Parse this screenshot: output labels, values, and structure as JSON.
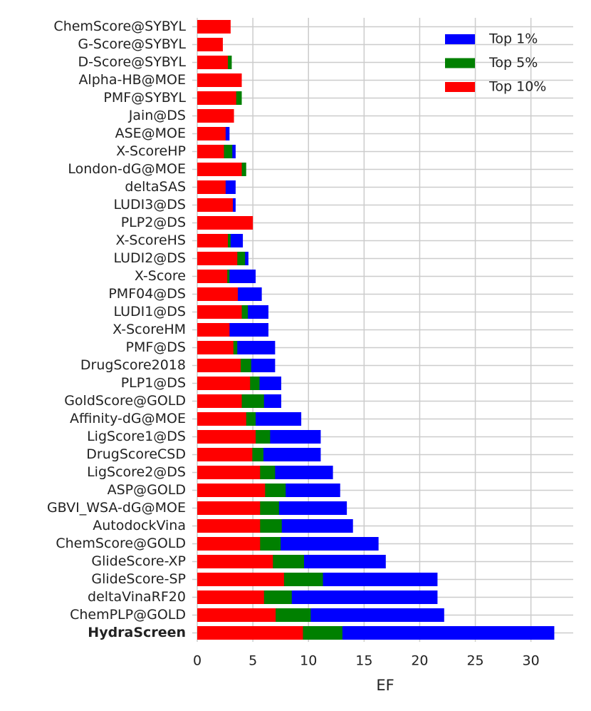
{
  "chart_data": {
    "type": "bar",
    "orientation": "horizontal",
    "overlay": true,
    "x_label": "EF",
    "categories": [
      "ChemScore@SYBYL",
      "G-Score@SYBYL",
      "D-Score@SYBYL",
      "Alpha-HB@MOE",
      "PMF@SYBYL",
      "Jain@DS",
      "ASE@MOE",
      "X-ScoreHP",
      "London-dG@MOE",
      "deltaSAS",
      "LUDI3@DS",
      "PLP2@DS",
      "X-ScoreHS",
      "LUDI2@DS",
      "X-Score",
      "PMF04@DS",
      "LUDI1@DS",
      "X-ScoreHM",
      "PMF@DS",
      "DrugScore2018",
      "PLP1@DS",
      "GoldScore@GOLD",
      "Affinity-dG@MOE",
      "LigScore1@DS",
      "DrugScoreCSD",
      "LigScore2@DS",
      "ASP@GOLD",
      "GBVI_WSA-dG@MOE",
      "AutodockVina",
      "ChemScore@GOLD",
      "GlideScore-XP",
      "GlideScore-SP",
      "deltaVinaRF20",
      "ChemPLP@GOLD",
      "HydraScreen"
    ],
    "series": [
      {
        "name": "Top 1%",
        "color": "#0000ff",
        "values": [
          0,
          0,
          0,
          0,
          0,
          0,
          2.9,
          3.45,
          0,
          3.45,
          3.45,
          0,
          4.1,
          4.6,
          5.25,
          5.8,
          6.4,
          6.4,
          7.0,
          7.0,
          7.55,
          7.55,
          9.35,
          11.1,
          11.1,
          12.2,
          12.85,
          13.45,
          14.0,
          16.3,
          16.95,
          21.6,
          21.6,
          22.2,
          32.1
        ]
      },
      {
        "name": "Top 5%",
        "color": "#008000",
        "values": [
          0,
          0,
          3.1,
          0,
          4.0,
          0,
          0,
          3.15,
          4.4,
          0,
          0,
          0,
          3.0,
          4.3,
          2.9,
          0,
          4.55,
          0,
          3.6,
          4.85,
          5.6,
          6.0,
          5.25,
          6.55,
          5.95,
          7.0,
          7.95,
          7.35,
          7.6,
          7.5,
          9.6,
          11.3,
          8.5,
          10.2,
          13.05
        ]
      },
      {
        "name": "Top 10%",
        "color": "#ff0000",
        "values": [
          3.0,
          2.3,
          2.75,
          4.0,
          3.5,
          3.3,
          2.55,
          2.4,
          4.0,
          2.55,
          3.2,
          5.0,
          2.75,
          3.6,
          2.7,
          3.65,
          4.0,
          2.9,
          3.25,
          3.9,
          4.75,
          4.0,
          4.4,
          5.25,
          4.95,
          5.65,
          6.1,
          5.65,
          5.65,
          5.65,
          6.8,
          7.8,
          6.0,
          7.05,
          9.5
        ]
      }
    ],
    "xlim": [
      -0.45,
      33.8
    ],
    "xticks": [
      0,
      5,
      10,
      15,
      20,
      25,
      30
    ],
    "grid": true,
    "legend": "upper right"
  }
}
